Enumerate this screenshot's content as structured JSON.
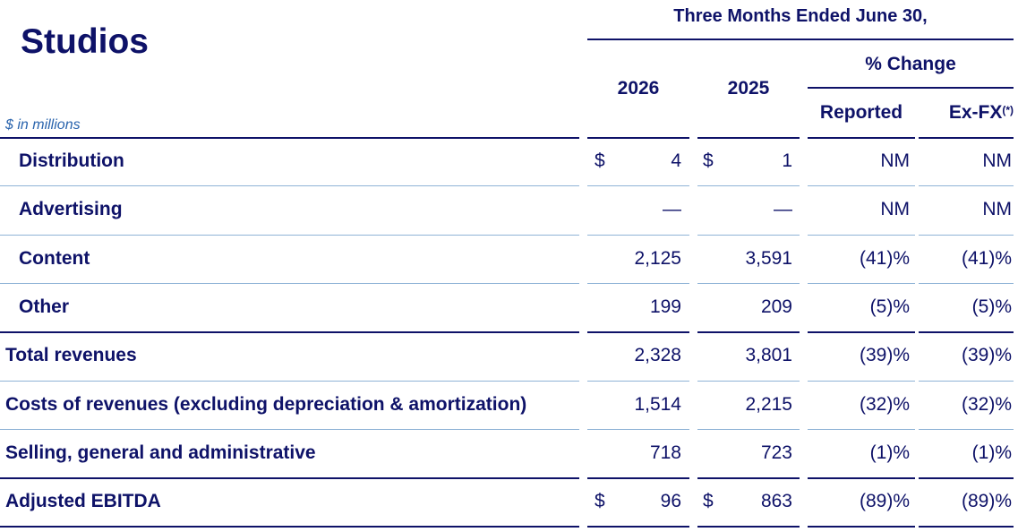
{
  "header": {
    "title": "Studios",
    "units": "$ in millions",
    "period": "Three Months Ended June 30,",
    "pct_change": "% Change",
    "year_current": "2026",
    "year_prior": "2025",
    "reported": "Reported",
    "exfx": "Ex-FX",
    "exfx_note": "(*)"
  },
  "rows": [
    {
      "label": "Distribution",
      "cur_dollar": "$",
      "cur": "4",
      "prior_dollar": "$",
      "prior": "1",
      "reported": "NM",
      "exfx": "NM"
    },
    {
      "label": "Advertising",
      "cur_dollar": "",
      "cur": "—",
      "prior_dollar": "",
      "prior": "—",
      "reported": "NM",
      "exfx": "NM"
    },
    {
      "label": "Content",
      "cur_dollar": "",
      "cur": "2,125",
      "prior_dollar": "",
      "prior": "3,591",
      "reported": "(41)%",
      "exfx": "(41)%"
    },
    {
      "label": "Other",
      "cur_dollar": "",
      "cur": "199",
      "prior_dollar": "",
      "prior": "209",
      "reported": "(5)%",
      "exfx": "(5)%"
    },
    {
      "label": "Total revenues",
      "cur_dollar": "",
      "cur": "2,328",
      "prior_dollar": "",
      "prior": "3,801",
      "reported": "(39)%",
      "exfx": "(39)%"
    },
    {
      "label": "Costs of revenues (excluding depreciation & amortization)",
      "cur_dollar": "",
      "cur": "1,514",
      "prior_dollar": "",
      "prior": "2,215",
      "reported": "(32)%",
      "exfx": "(32)%"
    },
    {
      "label": "Selling, general and administrative",
      "cur_dollar": "",
      "cur": "718",
      "prior_dollar": "",
      "prior": "723",
      "reported": "(1)%",
      "exfx": "(1)%"
    },
    {
      "label": "Adjusted EBITDA",
      "cur_dollar": "$",
      "cur": "96",
      "prior_dollar": "$",
      "prior": "863",
      "reported": "(89)%",
      "exfx": "(89)%"
    }
  ],
  "colors": {
    "text": "#0e1268",
    "units": "#2a64ad",
    "rule_thin": "#8fb3d6"
  }
}
